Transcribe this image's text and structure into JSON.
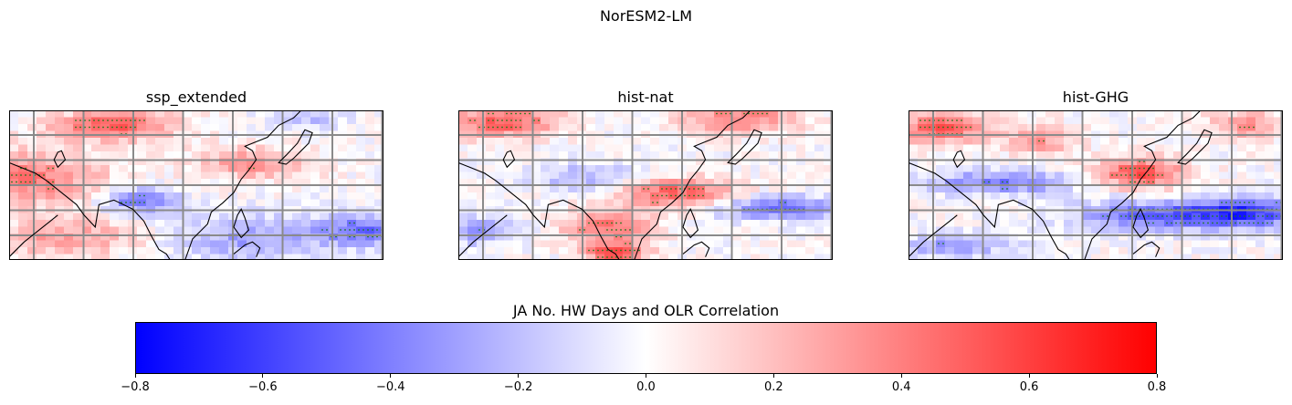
{
  "figure": {
    "title": "NorESM2-LM",
    "colorbar_label": "JA No. HW Days and OLR Correlation",
    "colormap": [
      "#0000ff",
      "#ffffff",
      "#ff0000"
    ],
    "vmin": -0.8,
    "vmax": 0.8,
    "colorbar_ticks": [
      "−0.8",
      "−0.6",
      "−0.4",
      "−0.2",
      "0.0",
      "0.2",
      "0.4",
      "0.6",
      "0.8"
    ],
    "gridline_color": "#8a8a8a",
    "stipple_color": "#1a7a1a",
    "coastline_color": "#000000"
  },
  "panels": [
    {
      "id": "ssp",
      "title": "ssp_extended"
    },
    {
      "id": "nat",
      "title": "hist-nat"
    },
    {
      "id": "ghg",
      "title": "hist-GHG"
    }
  ]
}
